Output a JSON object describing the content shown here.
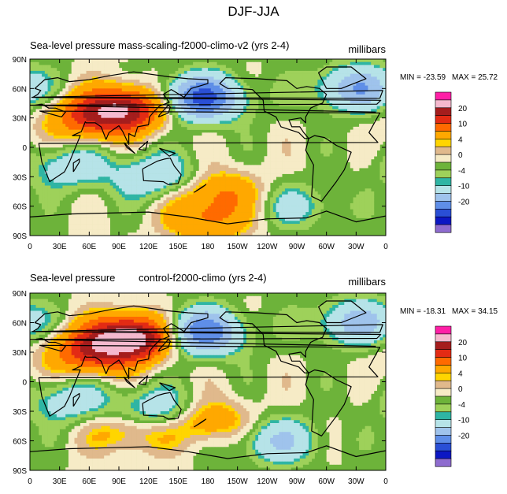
{
  "figure_title": "DJF-JJA",
  "colors": {
    "levels": [
      "#8e6ccf",
      "#0c17c4",
      "#2a4fd6",
      "#5f8ee8",
      "#9fc3ec",
      "#b6e3e8",
      "#2fb5a4",
      "#9ed15a",
      "#6db33a",
      "#f6ebc6",
      "#e0b98c",
      "#ffd500",
      "#ffa800",
      "#ff6a00",
      "#e32b14",
      "#a51d1d",
      "#f5b9ce",
      "#ff1fa6"
    ],
    "land_outline": "#000000",
    "frame": "#000000"
  },
  "colorbar": {
    "labels": [
      "20",
      "10",
      "4",
      "0",
      "-4",
      "-10",
      "-20"
    ]
  },
  "chart_data": [
    {
      "type": "heatmap",
      "title_left": "Sea-level pressure",
      "title_center": "mass-scaling-f2000-climo-v2 (yrs 2-4)",
      "units": "millibars",
      "min_label": "MIN = -23.59",
      "max_label": "MAX =  25.72",
      "min": -23.59,
      "max": 25.72,
      "xticks": [
        "0",
        "30E",
        "60E",
        "90E",
        "120E",
        "150E",
        "180",
        "150W",
        "120W",
        "90W",
        "60W",
        "30W",
        "0"
      ],
      "yticks": [
        "90N",
        "60N",
        "30N",
        "0",
        "30S",
        "60S",
        "90S"
      ],
      "contour_levels": [
        -25,
        -20,
        -15,
        -10,
        -5,
        -4,
        -2,
        0,
        2,
        4,
        5,
        10,
        15,
        20,
        25
      ],
      "features": [
        {
          "lon": 100,
          "lat": 40,
          "value": 22
        },
        {
          "lon": 60,
          "lat": 30,
          "value": 14
        },
        {
          "lon": 172,
          "lat": 50,
          "value": -22
        },
        {
          "lon": 330,
          "lat": 60,
          "value": -14
        },
        {
          "lon": 130,
          "lat": -30,
          "value": -10
        },
        {
          "lon": 40,
          "lat": -20,
          "value": -8
        },
        {
          "lon": 190,
          "lat": -45,
          "value": 10
        },
        {
          "lon": 270,
          "lat": -60,
          "value": -6
        },
        {
          "lon": 180,
          "lat": -75,
          "value": 10
        }
      ]
    },
    {
      "type": "heatmap",
      "title_left": "Sea-level pressure",
      "title_center": "control-f2000-climo (yrs 2-4)",
      "units": "millibars",
      "min_label": "MIN = -18.31",
      "max_label": "MAX =  34.15",
      "min": -18.31,
      "max": 34.15,
      "xticks": [
        "0",
        "30E",
        "60E",
        "90E",
        "120E",
        "150E",
        "180",
        "150W",
        "120W",
        "90W",
        "60W",
        "30W",
        "0"
      ],
      "yticks": [
        "90N",
        "60N",
        "30N",
        "0",
        "30S",
        "60S",
        "90S"
      ],
      "contour_levels": [
        -25,
        -20,
        -15,
        -10,
        -5,
        -4,
        -2,
        0,
        2,
        4,
        5,
        10,
        15,
        20,
        25
      ],
      "features": [
        {
          "lon": 105,
          "lat": 45,
          "value": 30
        },
        {
          "lon": 60,
          "lat": 30,
          "value": 16
        },
        {
          "lon": 172,
          "lat": 50,
          "value": -20
        },
        {
          "lon": 330,
          "lat": 60,
          "value": -12
        },
        {
          "lon": 130,
          "lat": -30,
          "value": -10
        },
        {
          "lon": 40,
          "lat": -20,
          "value": -8
        },
        {
          "lon": 180,
          "lat": -40,
          "value": 10
        },
        {
          "lon": 250,
          "lat": -60,
          "value": -10
        },
        {
          "lon": 100,
          "lat": -50,
          "value": 8
        }
      ]
    }
  ]
}
